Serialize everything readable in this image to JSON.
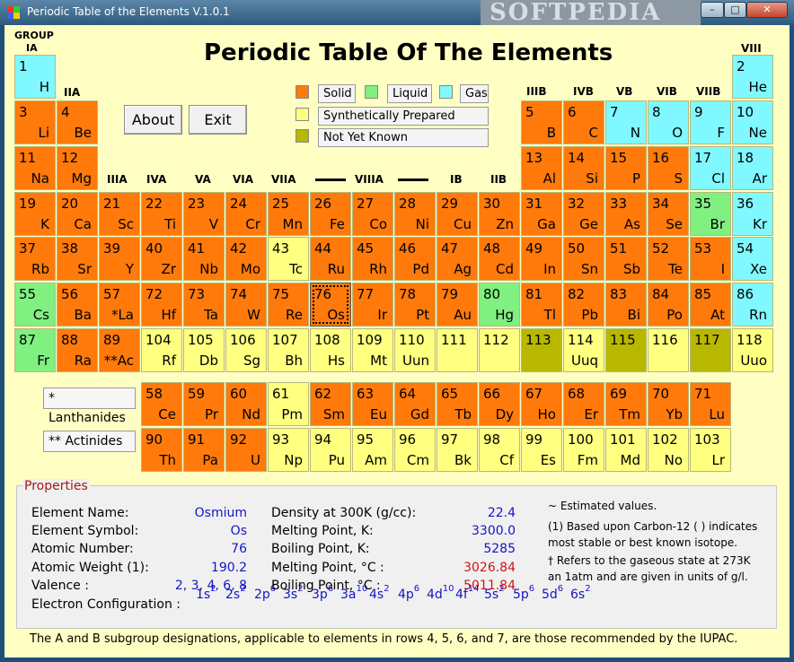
{
  "window": {
    "title": "Periodic Table of the Elements V.1.0.1",
    "watermark": "SOFTPEDIA",
    "minimize": "–",
    "maximize": "□",
    "close": "✕"
  },
  "main_title": "Periodic Table Of The Elements",
  "group_labels": {
    "IA_top": "GROUP",
    "IA": "IA",
    "VIII": "VIII",
    "IIA": "IIA",
    "IIIB": "IIIB",
    "IVB": "IVB",
    "VB": "VB",
    "VIB": "VIB",
    "VIIB": "VIIB",
    "IIIA": "IIIA",
    "IVA": "IVA",
    "VA": "VA",
    "VIA": "VIA",
    "VIIA": "VIIA",
    "VIIIA": "VIIIA",
    "IB": "IB",
    "IIB": "IIB"
  },
  "buttons": {
    "about": "About",
    "exit": "Exit"
  },
  "legend": {
    "solid": "Solid",
    "liquid": "Liquid",
    "gas": "Gas",
    "synthetic": "Synthetically Prepared",
    "unknown": "Not Yet Known"
  },
  "series": {
    "lanthanides": "* Lanthanides",
    "actinides": "**  Actinides"
  },
  "colors": {
    "solid": "#ff7a0a",
    "liquid": "#80f080",
    "gas": "#80f8ff",
    "synthetic": "#ffff80",
    "unknown": "#b8b800"
  },
  "selected_element": "Os",
  "elements": [
    {
      "n": "1",
      "s": "H",
      "t": "gas",
      "c": 0,
      "r": 0
    },
    {
      "n": "2",
      "s": "He",
      "t": "gas",
      "c": 17,
      "r": 0
    },
    {
      "n": "3",
      "s": "Li",
      "t": "solid",
      "c": 0,
      "r": 1
    },
    {
      "n": "4",
      "s": "Be",
      "t": "solid",
      "c": 1,
      "r": 1
    },
    {
      "n": "5",
      "s": "B",
      "t": "solid",
      "c": 12,
      "r": 1
    },
    {
      "n": "6",
      "s": "C",
      "t": "solid",
      "c": 13,
      "r": 1
    },
    {
      "n": "7",
      "s": "N",
      "t": "gas",
      "c": 14,
      "r": 1
    },
    {
      "n": "8",
      "s": "O",
      "t": "gas",
      "c": 15,
      "r": 1
    },
    {
      "n": "9",
      "s": "F",
      "t": "gas",
      "c": 16,
      "r": 1
    },
    {
      "n": "10",
      "s": "Ne",
      "t": "gas",
      "c": 17,
      "r": 1
    },
    {
      "n": "11",
      "s": "Na",
      "t": "solid",
      "c": 0,
      "r": 2
    },
    {
      "n": "12",
      "s": "Mg",
      "t": "solid",
      "c": 1,
      "r": 2
    },
    {
      "n": "13",
      "s": "Al",
      "t": "solid",
      "c": 12,
      "r": 2
    },
    {
      "n": "14",
      "s": "Si",
      "t": "solid",
      "c": 13,
      "r": 2
    },
    {
      "n": "15",
      "s": "P",
      "t": "solid",
      "c": 14,
      "r": 2
    },
    {
      "n": "16",
      "s": "S",
      "t": "solid",
      "c": 15,
      "r": 2
    },
    {
      "n": "17",
      "s": "Cl",
      "t": "gas",
      "c": 16,
      "r": 2
    },
    {
      "n": "18",
      "s": "Ar",
      "t": "gas",
      "c": 17,
      "r": 2
    },
    {
      "n": "19",
      "s": "K",
      "t": "solid",
      "c": 0,
      "r": 3
    },
    {
      "n": "20",
      "s": "Ca",
      "t": "solid",
      "c": 1,
      "r": 3
    },
    {
      "n": "21",
      "s": "Sc",
      "t": "solid",
      "c": 2,
      "r": 3
    },
    {
      "n": "22",
      "s": "Ti",
      "t": "solid",
      "c": 3,
      "r": 3
    },
    {
      "n": "23",
      "s": "V",
      "t": "solid",
      "c": 4,
      "r": 3
    },
    {
      "n": "24",
      "s": "Cr",
      "t": "solid",
      "c": 5,
      "r": 3
    },
    {
      "n": "25",
      "s": "Mn",
      "t": "solid",
      "c": 6,
      "r": 3
    },
    {
      "n": "26",
      "s": "Fe",
      "t": "solid",
      "c": 7,
      "r": 3
    },
    {
      "n": "27",
      "s": "Co",
      "t": "solid",
      "c": 8,
      "r": 3
    },
    {
      "n": "28",
      "s": "Ni",
      "t": "solid",
      "c": 9,
      "r": 3
    },
    {
      "n": "29",
      "s": "Cu",
      "t": "solid",
      "c": 10,
      "r": 3
    },
    {
      "n": "30",
      "s": "Zn",
      "t": "solid",
      "c": 11,
      "r": 3
    },
    {
      "n": "31",
      "s": "Ga",
      "t": "solid",
      "c": 12,
      "r": 3
    },
    {
      "n": "32",
      "s": "Ge",
      "t": "solid",
      "c": 13,
      "r": 3
    },
    {
      "n": "33",
      "s": "As",
      "t": "solid",
      "c": 14,
      "r": 3
    },
    {
      "n": "34",
      "s": "Se",
      "t": "solid",
      "c": 15,
      "r": 3
    },
    {
      "n": "35",
      "s": "Br",
      "t": "liquid",
      "c": 16,
      "r": 3
    },
    {
      "n": "36",
      "s": "Kr",
      "t": "gas",
      "c": 17,
      "r": 3
    },
    {
      "n": "37",
      "s": "Rb",
      "t": "solid",
      "c": 0,
      "r": 4
    },
    {
      "n": "38",
      "s": "Sr",
      "t": "solid",
      "c": 1,
      "r": 4
    },
    {
      "n": "39",
      "s": "Y",
      "t": "solid",
      "c": 2,
      "r": 4
    },
    {
      "n": "40",
      "s": "Zr",
      "t": "solid",
      "c": 3,
      "r": 4
    },
    {
      "n": "41",
      "s": "Nb",
      "t": "solid",
      "c": 4,
      "r": 4
    },
    {
      "n": "42",
      "s": "Mo",
      "t": "solid",
      "c": 5,
      "r": 4
    },
    {
      "n": "43",
      "s": "Tc",
      "t": "synthetic",
      "c": 6,
      "r": 4
    },
    {
      "n": "44",
      "s": "Ru",
      "t": "solid",
      "c": 7,
      "r": 4
    },
    {
      "n": "45",
      "s": "Rh",
      "t": "solid",
      "c": 8,
      "r": 4
    },
    {
      "n": "46",
      "s": "Pd",
      "t": "solid",
      "c": 9,
      "r": 4
    },
    {
      "n": "47",
      "s": "Ag",
      "t": "solid",
      "c": 10,
      "r": 4
    },
    {
      "n": "48",
      "s": "Cd",
      "t": "solid",
      "c": 11,
      "r": 4
    },
    {
      "n": "49",
      "s": "In",
      "t": "solid",
      "c": 12,
      "r": 4
    },
    {
      "n": "50",
      "s": "Sn",
      "t": "solid",
      "c": 13,
      "r": 4
    },
    {
      "n": "51",
      "s": "Sb",
      "t": "solid",
      "c": 14,
      "r": 4
    },
    {
      "n": "52",
      "s": "Te",
      "t": "solid",
      "c": 15,
      "r": 4
    },
    {
      "n": "53",
      "s": "I",
      "t": "solid",
      "c": 16,
      "r": 4
    },
    {
      "n": "54",
      "s": "Xe",
      "t": "gas",
      "c": 17,
      "r": 4
    },
    {
      "n": "55",
      "s": "Cs",
      "t": "liquid",
      "c": 0,
      "r": 5
    },
    {
      "n": "56",
      "s": "Ba",
      "t": "solid",
      "c": 1,
      "r": 5
    },
    {
      "n": "57",
      "s": "*La",
      "t": "solid",
      "c": 2,
      "r": 5
    },
    {
      "n": "72",
      "s": "Hf",
      "t": "solid",
      "c": 3,
      "r": 5
    },
    {
      "n": "73",
      "s": "Ta",
      "t": "solid",
      "c": 4,
      "r": 5
    },
    {
      "n": "74",
      "s": "W",
      "t": "solid",
      "c": 5,
      "r": 5
    },
    {
      "n": "75",
      "s": "Re",
      "t": "solid",
      "c": 6,
      "r": 5
    },
    {
      "n": "76",
      "s": "Os",
      "t": "solid",
      "c": 7,
      "r": 5
    },
    {
      "n": "77",
      "s": "Ir",
      "t": "solid",
      "c": 8,
      "r": 5
    },
    {
      "n": "78",
      "s": "Pt",
      "t": "solid",
      "c": 9,
      "r": 5
    },
    {
      "n": "79",
      "s": "Au",
      "t": "solid",
      "c": 10,
      "r": 5
    },
    {
      "n": "80",
      "s": "Hg",
      "t": "liquid",
      "c": 11,
      "r": 5
    },
    {
      "n": "81",
      "s": "Tl",
      "t": "solid",
      "c": 12,
      "r": 5
    },
    {
      "n": "82",
      "s": "Pb",
      "t": "solid",
      "c": 13,
      "r": 5
    },
    {
      "n": "83",
      "s": "Bi",
      "t": "solid",
      "c": 14,
      "r": 5
    },
    {
      "n": "84",
      "s": "Po",
      "t": "solid",
      "c": 15,
      "r": 5
    },
    {
      "n": "85",
      "s": "At",
      "t": "solid",
      "c": 16,
      "r": 5
    },
    {
      "n": "86",
      "s": "Rn",
      "t": "gas",
      "c": 17,
      "r": 5
    },
    {
      "n": "87",
      "s": "Fr",
      "t": "liquid",
      "c": 0,
      "r": 6
    },
    {
      "n": "88",
      "s": "Ra",
      "t": "solid",
      "c": 1,
      "r": 6
    },
    {
      "n": "89",
      "s": "**Ac",
      "t": "solid",
      "c": 2,
      "r": 6
    },
    {
      "n": "104",
      "s": "Rf",
      "t": "synthetic",
      "c": 3,
      "r": 6
    },
    {
      "n": "105",
      "s": "Db",
      "t": "synthetic",
      "c": 4,
      "r": 6
    },
    {
      "n": "106",
      "s": "Sg",
      "t": "synthetic",
      "c": 5,
      "r": 6
    },
    {
      "n": "107",
      "s": "Bh",
      "t": "synthetic",
      "c": 6,
      "r": 6
    },
    {
      "n": "108",
      "s": "Hs",
      "t": "synthetic",
      "c": 7,
      "r": 6
    },
    {
      "n": "109",
      "s": "Mt",
      "t": "synthetic",
      "c": 8,
      "r": 6
    },
    {
      "n": "110",
      "s": "Uun",
      "t": "synthetic",
      "c": 9,
      "r": 6
    },
    {
      "n": "111",
      "s": "",
      "t": "synthetic",
      "c": 10,
      "r": 6
    },
    {
      "n": "112",
      "s": "",
      "t": "synthetic",
      "c": 11,
      "r": 6
    },
    {
      "n": "113",
      "s": "",
      "t": "unknown",
      "c": 12,
      "r": 6
    },
    {
      "n": "114",
      "s": "Uuq",
      "t": "synthetic",
      "c": 13,
      "r": 6
    },
    {
      "n": "115",
      "s": "",
      "t": "unknown",
      "c": 14,
      "r": 6
    },
    {
      "n": "116",
      "s": "",
      "t": "synthetic",
      "c": 15,
      "r": 6
    },
    {
      "n": "117",
      "s": "",
      "t": "unknown",
      "c": 16,
      "r": 6
    },
    {
      "n": "118",
      "s": "Uuo",
      "t": "synthetic",
      "c": 17,
      "r": 6
    },
    {
      "n": "58",
      "s": "Ce",
      "t": "solid",
      "c": 3,
      "r": 7
    },
    {
      "n": "59",
      "s": "Pr",
      "t": "solid",
      "c": 4,
      "r": 7
    },
    {
      "n": "60",
      "s": "Nd",
      "t": "solid",
      "c": 5,
      "r": 7
    },
    {
      "n": "61",
      "s": "Pm",
      "t": "synthetic",
      "c": 6,
      "r": 7
    },
    {
      "n": "62",
      "s": "Sm",
      "t": "solid",
      "c": 7,
      "r": 7
    },
    {
      "n": "63",
      "s": "Eu",
      "t": "solid",
      "c": 8,
      "r": 7
    },
    {
      "n": "64",
      "s": "Gd",
      "t": "solid",
      "c": 9,
      "r": 7
    },
    {
      "n": "65",
      "s": "Tb",
      "t": "solid",
      "c": 10,
      "r": 7
    },
    {
      "n": "66",
      "s": "Dy",
      "t": "solid",
      "c": 11,
      "r": 7
    },
    {
      "n": "67",
      "s": "Ho",
      "t": "solid",
      "c": 12,
      "r": 7
    },
    {
      "n": "68",
      "s": "Er",
      "t": "solid",
      "c": 13,
      "r": 7
    },
    {
      "n": "69",
      "s": "Tm",
      "t": "solid",
      "c": 14,
      "r": 7
    },
    {
      "n": "70",
      "s": "Yb",
      "t": "solid",
      "c": 15,
      "r": 7
    },
    {
      "n": "71",
      "s": "Lu",
      "t": "solid",
      "c": 16,
      "r": 7
    },
    {
      "n": "90",
      "s": "Th",
      "t": "solid",
      "c": 3,
      "r": 8
    },
    {
      "n": "91",
      "s": "Pa",
      "t": "solid",
      "c": 4,
      "r": 8
    },
    {
      "n": "92",
      "s": "U",
      "t": "solid",
      "c": 5,
      "r": 8
    },
    {
      "n": "93",
      "s": "Np",
      "t": "synthetic",
      "c": 6,
      "r": 8
    },
    {
      "n": "94",
      "s": "Pu",
      "t": "synthetic",
      "c": 7,
      "r": 8
    },
    {
      "n": "95",
      "s": "Am",
      "t": "synthetic",
      "c": 8,
      "r": 8
    },
    {
      "n": "96",
      "s": "Cm",
      "t": "synthetic",
      "c": 9,
      "r": 8
    },
    {
      "n": "97",
      "s": "Bk",
      "t": "synthetic",
      "c": 10,
      "r": 8
    },
    {
      "n": "98",
      "s": "Cf",
      "t": "synthetic",
      "c": 11,
      "r": 8
    },
    {
      "n": "99",
      "s": "Es",
      "t": "synthetic",
      "c": 12,
      "r": 8
    },
    {
      "n": "100",
      "s": "Fm",
      "t": "synthetic",
      "c": 13,
      "r": 8
    },
    {
      "n": "101",
      "s": "Md",
      "t": "synthetic",
      "c": 14,
      "r": 8
    },
    {
      "n": "102",
      "s": "No",
      "t": "synthetic",
      "c": 15,
      "r": 8
    },
    {
      "n": "103",
      "s": "Lr",
      "t": "synthetic",
      "c": 16,
      "r": 8
    }
  ],
  "properties": {
    "legend": "Properties",
    "name_label": "Element Name:",
    "name_value": "Osmium",
    "symbol_label": "Element Symbol:",
    "symbol_value": "Os",
    "number_label": "Atomic Number:",
    "number_value": "76",
    "weight_label": "Atomic Weight (1):",
    "weight_value": "190.2",
    "valence_label": "Valence :",
    "valence_value": "2, 3, 4, 6, 8",
    "config_label": "Electron Configuration :",
    "density_label": "Density at 300K (g/cc):",
    "density_value": "22.4",
    "melt_k_label": "Melting Point, K:",
    "melt_k_value": "3300.0",
    "boil_k_label": "Boiling Point, K:",
    "boil_k_value": "5285",
    "melt_c_label": "Melting Point, °C :",
    "melt_c_value": "3026.84",
    "boil_c_label": "Boiling Point, °C :",
    "boil_c_value": "5011.84",
    "electron_config": [
      {
        "orb": "1s",
        "e": "2"
      },
      {
        "orb": "2s",
        "e": "2"
      },
      {
        "orb": "2p",
        "e": "6"
      },
      {
        "orb": "3s",
        "e": "2"
      },
      {
        "orb": "3p",
        "e": "6"
      },
      {
        "orb": "3a",
        "e": "10"
      },
      {
        "orb": "4s",
        "e": "2"
      },
      {
        "orb": "4p",
        "e": "6"
      },
      {
        "orb": "4d",
        "e": "10"
      },
      {
        "orb": "4f",
        "e": "14"
      },
      {
        "orb": "5s",
        "e": "2"
      },
      {
        "orb": "5p",
        "e": "6"
      },
      {
        "orb": "5d",
        "e": "6"
      },
      {
        "orb": "6s",
        "e": "2"
      }
    ],
    "note1": "~  Estimated values.",
    "note2a": "(1)  Based upon Carbon-12 ( ) indicates",
    "note2b": "most stable or best known isotope.",
    "note3a": "†  Refers to the gaseous state at 273K",
    "note3b": "an 1atm and are given in units of g/l."
  },
  "footnote": "The A and B subgroup designations, applicable to elements in rows 4, 5, 6, and 7, are those recommended by the IUPAC."
}
